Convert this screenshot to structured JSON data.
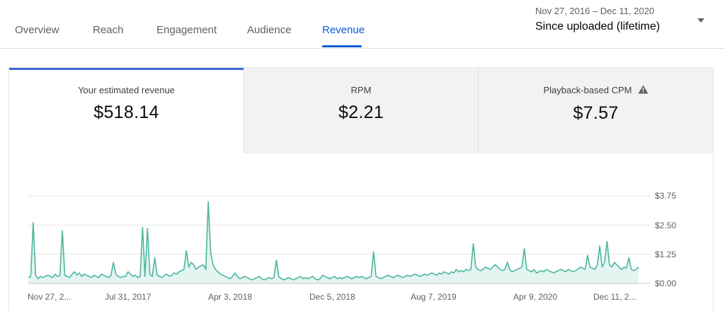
{
  "tabs": [
    {
      "label": "Overview",
      "active": false
    },
    {
      "label": "Reach",
      "active": false
    },
    {
      "label": "Engagement",
      "active": false
    },
    {
      "label": "Audience",
      "active": false
    },
    {
      "label": "Revenue",
      "active": true
    }
  ],
  "date_picker": {
    "range": "Nov 27, 2016 – Dec 11, 2020",
    "label": "Since uploaded (lifetime)",
    "icon": "dropdown-arrow-icon"
  },
  "metrics": [
    {
      "label": "Your estimated revenue",
      "value": "$518.14",
      "selected": true
    },
    {
      "label": "RPM",
      "value": "$2.21",
      "selected": false
    },
    {
      "label": "Playback-based CPM",
      "value": "$7.57",
      "selected": false,
      "icon": "warning-icon"
    }
  ],
  "colors": {
    "accent": "#065fd4",
    "series": "#4db6a0",
    "selected_bar": "#3e6bd8"
  },
  "chart_data": {
    "type": "line",
    "x_tick_labels": [
      "Nov 27, 2...",
      "Jul 31, 2017",
      "Apr 3, 2018",
      "Dec 5, 2018",
      "Aug 7, 2019",
      "Apr 9, 2020",
      "Dec 11, 2..."
    ],
    "y_tick_labels": [
      "$0.00",
      "$1.25",
      "$2.50",
      "$3.75"
    ],
    "ylim": [
      0,
      3.75
    ],
    "grid": true,
    "x_range": [
      "2016-11-27",
      "2020-12-11"
    ],
    "series": [
      {
        "values": [
          0.25,
          0.3,
          2.6,
          0.35,
          0.2,
          0.3,
          0.25,
          0.3,
          0.35,
          0.3,
          0.25,
          0.4,
          0.3,
          0.35,
          2.25,
          0.35,
          0.3,
          0.25,
          0.4,
          0.5,
          0.35,
          0.45,
          0.3,
          0.4,
          0.35,
          0.3,
          0.25,
          0.35,
          0.3,
          0.25,
          0.4,
          0.35,
          0.3,
          0.25,
          0.35,
          0.9,
          0.4,
          0.3,
          0.25,
          0.3,
          0.3,
          0.5,
          0.4,
          0.3,
          0.35,
          0.25,
          0.3,
          2.4,
          0.3,
          2.35,
          0.4,
          0.3,
          1.1,
          0.35,
          0.3,
          0.25,
          0.35,
          0.4,
          0.3,
          0.35,
          0.45,
          0.4,
          0.5,
          0.55,
          0.6,
          1.4,
          0.7,
          0.9,
          0.8,
          0.6,
          0.7,
          0.75,
          0.8,
          0.6,
          3.5,
          1.3,
          0.8,
          0.6,
          0.5,
          0.4,
          0.35,
          0.3,
          0.25,
          0.2,
          0.3,
          0.45,
          0.3,
          0.2,
          0.25,
          0.3,
          0.25,
          0.2,
          0.15,
          0.2,
          0.25,
          0.3,
          0.2,
          0.15,
          0.2,
          0.25,
          0.2,
          0.25,
          1.0,
          0.3,
          0.2,
          0.15,
          0.2,
          0.25,
          0.2,
          0.15,
          0.2,
          0.25,
          0.3,
          0.2,
          0.25,
          0.2,
          0.25,
          0.3,
          0.2,
          0.15,
          0.2,
          0.35,
          0.3,
          0.25,
          0.2,
          0.25,
          0.3,
          0.2,
          0.25,
          0.2,
          0.25,
          0.3,
          0.25,
          0.2,
          0.25,
          0.3,
          0.25,
          0.3,
          0.25,
          0.2,
          0.25,
          0.3,
          1.35,
          0.3,
          0.25,
          0.2,
          0.25,
          0.3,
          0.35,
          0.3,
          0.25,
          0.3,
          0.35,
          0.3,
          0.25,
          0.3,
          0.35,
          0.3,
          0.35,
          0.4,
          0.35,
          0.3,
          0.35,
          0.4,
          0.35,
          0.4,
          0.45,
          0.4,
          0.35,
          0.45,
          0.4,
          0.5,
          0.45,
          0.4,
          0.5,
          0.45,
          0.6,
          0.5,
          0.55,
          0.5,
          0.6,
          0.55,
          0.6,
          1.7,
          0.7,
          0.6,
          0.55,
          0.6,
          0.7,
          0.65,
          0.6,
          0.7,
          0.8,
          0.7,
          0.6,
          0.55,
          0.6,
          0.9,
          0.6,
          0.5,
          0.55,
          0.6,
          0.65,
          0.7,
          1.5,
          0.6,
          0.55,
          0.5,
          0.6,
          0.45,
          0.5,
          0.55,
          0.5,
          0.6,
          0.55,
          0.5,
          0.45,
          0.5,
          0.55,
          0.6,
          0.55,
          0.5,
          0.6,
          0.55,
          0.5,
          0.55,
          0.6,
          0.7,
          0.65,
          0.6,
          1.2,
          0.7,
          0.65,
          0.6,
          0.8,
          1.6,
          0.7,
          0.9,
          1.8,
          0.8,
          0.7,
          0.9,
          0.8,
          0.7,
          0.6,
          0.7,
          0.65,
          1.1,
          0.6,
          0.55,
          0.6,
          0.7
        ]
      }
    ]
  }
}
